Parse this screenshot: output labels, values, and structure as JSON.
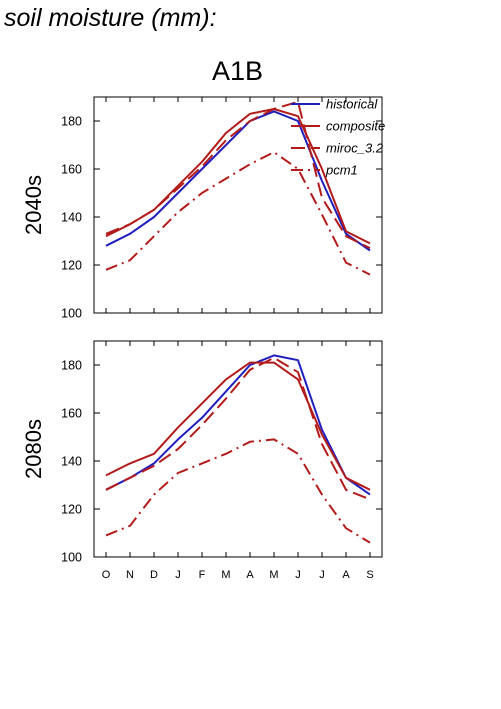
{
  "page": {
    "title": "soil moisture (mm):"
  },
  "chart_data": {
    "type": "line",
    "title": "A1B",
    "x": [
      "O",
      "N",
      "D",
      "J",
      "F",
      "M",
      "A",
      "M",
      "J",
      "J",
      "A",
      "S"
    ],
    "ylim": [
      100,
      190
    ],
    "yticks": [
      100,
      120,
      140,
      160,
      180
    ],
    "legend": {
      "placement": "top-right",
      "entries": [
        "historical",
        "composite",
        "miroc_3.2",
        "pcm1"
      ]
    },
    "series_styles": {
      "historical": {
        "color": "#1f1fbf",
        "dash": ""
      },
      "composite": {
        "color": "#b31b1b",
        "dash": ""
      },
      "miroc_3.2": {
        "color": "#b31b1b",
        "dash": "14 6"
      },
      "pcm1": {
        "color": "#b31b1b",
        "dash": "12 5 2 5"
      }
    },
    "panels": [
      {
        "label": "2040s",
        "series": [
          {
            "name": "historical",
            "values": [
              128,
              133,
              140,
              150,
              160,
              170,
              180,
              184,
              180,
              155,
              133,
              126
            ]
          },
          {
            "name": "composite",
            "values": [
              132,
              137,
              143,
              153,
              163,
              175,
              183,
              185,
              182,
              160,
              134,
              129
            ]
          },
          {
            "name": "miroc_3.2",
            "values": [
              133,
              137,
              143,
              152,
              161,
              172,
              180,
              185,
              188,
              148,
              132,
              127
            ]
          },
          {
            "name": "pcm1",
            "values": [
              118,
              122,
              132,
              142,
              150,
              156,
              162,
              167,
              160,
              141,
              121,
              116
            ]
          }
        ]
      },
      {
        "label": "2080s",
        "series": [
          {
            "name": "historical",
            "values": [
              128,
              133,
              139,
              149,
              158,
              169,
              180,
              184,
              182,
              153,
              133,
              126
            ]
          },
          {
            "name": "composite",
            "values": [
              134,
              139,
              143,
              154,
              164,
              174,
              181,
              181,
              174,
              151,
              133,
              128
            ]
          },
          {
            "name": "miroc_3.2",
            "values": [
              128,
              133,
              138,
              145,
              155,
              166,
              178,
              183,
              177,
              147,
              128,
              124
            ]
          },
          {
            "name": "pcm1",
            "values": [
              109,
              113,
              126,
              135,
              139,
              143,
              148,
              149,
              143,
              126,
              112,
              106
            ]
          }
        ]
      }
    ]
  }
}
